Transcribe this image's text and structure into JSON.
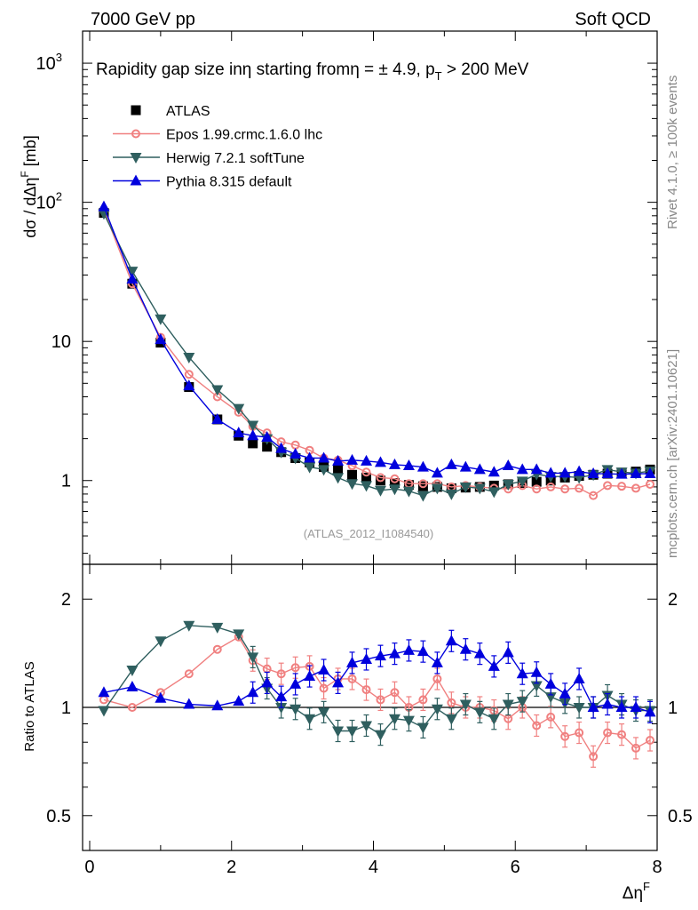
{
  "header": {
    "left": "7000 GeV pp",
    "right": "Soft QCD"
  },
  "side_labels": {
    "top": "Rivet 4.1.0, ≥ 100k events",
    "bottom": "mcplots.cern.ch [arXiv:2401.10621]"
  },
  "colors": {
    "atlas": "#000000",
    "epos": "#f08080",
    "herwig": "#2f5f5f",
    "pythia": "#0000dd"
  },
  "chart_data": [
    {
      "type": "line",
      "title": "Rapidity gap size inη starting fromη = ± 4.9, p_T > 200 MeV",
      "title_parts": {
        "main": "Rapidity gap size inη starting fromη = ± 4.9, p",
        "sub": "T",
        "tail": " > 200 MeV"
      },
      "ylabel": "dσ / dΔηF [mb]",
      "ylabel_parts": {
        "main": "dσ / dΔη",
        "sup": "F",
        "tail": " [mb]"
      },
      "yscale": "log",
      "ylim": [
        0.25,
        1700
      ],
      "xlim": [
        -0.1,
        8.0
      ],
      "yticks": [
        "10",
        "10",
        "10",
        "1"
      ],
      "ytick_sups": [
        "3",
        "2",
        "",
        ""
      ],
      "watermark": "(ATLAS_2012_I1084540)",
      "legend": [
        "ATLAS",
        "Epos 1.99.crmc.1.6.0 lhc",
        "Herwig 7.2.1 softTune",
        "Pythia 8.315 default"
      ],
      "x": [
        0.2,
        0.6,
        1.0,
        1.4,
        1.8,
        2.1,
        2.3,
        2.5,
        2.7,
        2.9,
        3.1,
        3.3,
        3.5,
        3.7,
        3.9,
        4.1,
        4.3,
        4.5,
        4.7,
        4.9,
        5.1,
        5.3,
        5.5,
        5.7,
        5.9,
        6.1,
        6.3,
        6.5,
        6.7,
        6.9,
        7.1,
        7.3,
        7.5,
        7.7,
        7.9
      ],
      "series": [
        {
          "name": "ATLAS",
          "values": [
            84,
            26,
            9.8,
            4.7,
            2.75,
            2.1,
            1.85,
            1.75,
            1.6,
            1.45,
            1.35,
            1.25,
            1.2,
            1.1,
            1.05,
            1.0,
            0.96,
            0.93,
            0.91,
            0.9,
            0.88,
            0.89,
            0.9,
            0.92,
            0.94,
            0.96,
            0.98,
            1.0,
            1.05,
            1.08,
            1.1,
            1.12,
            1.14,
            1.16,
            1.2
          ]
        },
        {
          "name": "Epos 1.99.crmc.1.6.0 lhc",
          "values": [
            88,
            26,
            10.7,
            5.8,
            4.0,
            3.1,
            2.45,
            2.2,
            1.9,
            1.8,
            1.65,
            1.45,
            1.4,
            1.28,
            1.15,
            1.05,
            1.03,
            0.95,
            0.95,
            0.95,
            0.9,
            0.92,
            0.9,
            0.88,
            0.87,
            0.92,
            0.87,
            0.9,
            0.87,
            0.88,
            0.78,
            0.92,
            0.91,
            0.88,
            0.94
          ]
        },
        {
          "name": "Herwig 7.2.1 softTune",
          "values": [
            83,
            32,
            14.5,
            7.7,
            4.5,
            3.3,
            2.5,
            2.0,
            1.6,
            1.45,
            1.25,
            1.2,
            1.05,
            0.95,
            0.92,
            0.85,
            0.87,
            0.84,
            0.78,
            0.88,
            0.8,
            0.9,
            0.88,
            0.83,
            0.94,
            0.99,
            1.11,
            1.07,
            1.07,
            1.05,
            1.1,
            1.2,
            1.15,
            1.13,
            1.17
          ]
        },
        {
          "name": "Pythia 8.315 default",
          "values": [
            93,
            28,
            10.3,
            4.8,
            2.75,
            2.2,
            2.1,
            2.05,
            1.7,
            1.55,
            1.45,
            1.45,
            1.38,
            1.4,
            1.38,
            1.35,
            1.3,
            1.28,
            1.25,
            1.13,
            1.3,
            1.25,
            1.2,
            1.15,
            1.28,
            1.2,
            1.2,
            1.13,
            1.13,
            1.16,
            1.12,
            1.12,
            1.11,
            1.12,
            1.12
          ]
        }
      ]
    },
    {
      "type": "line",
      "ylabel": "Ratio to ATLAS",
      "yscale": "log",
      "ylim": [
        0.4,
        2.5
      ],
      "xlabel": "ΔηF",
      "xlabel_parts": {
        "main": "Δη",
        "sup": "F"
      },
      "xticks": [
        "0",
        "2",
        "4",
        "6",
        "8"
      ],
      "yticks": [
        "2",
        "1",
        "0.5"
      ],
      "x": [
        0.2,
        0.6,
        1.0,
        1.4,
        1.8,
        2.1,
        2.3,
        2.5,
        2.7,
        2.9,
        3.1,
        3.3,
        3.5,
        3.7,
        3.9,
        4.1,
        4.3,
        4.5,
        4.7,
        4.9,
        5.1,
        5.3,
        5.5,
        5.7,
        5.9,
        6.1,
        6.3,
        6.5,
        6.7,
        6.9,
        7.1,
        7.3,
        7.5,
        7.7,
        7.9
      ],
      "series": [
        {
          "name": "Epos 1.99.crmc.1.6.0 lhc",
          "values": [
            1.05,
            1.0,
            1.1,
            1.24,
            1.45,
            1.57,
            1.35,
            1.28,
            1.24,
            1.29,
            1.3,
            1.13,
            1.2,
            1.2,
            1.12,
            1.05,
            1.1,
            1.0,
            1.05,
            1.2,
            1.03,
            1.0,
            1.0,
            0.98,
            0.93,
            1.0,
            0.89,
            0.94,
            0.83,
            0.85,
            0.73,
            0.85,
            0.84,
            0.77,
            0.81
          ]
        },
        {
          "name": "Herwig 7.2.1 softTune",
          "values": [
            0.98,
            1.27,
            1.53,
            1.69,
            1.67,
            1.6,
            1.38,
            1.13,
            1.0,
            0.99,
            0.93,
            0.97,
            0.86,
            0.86,
            0.89,
            0.84,
            0.93,
            0.92,
            0.88,
            0.99,
            0.93,
            1.02,
            0.97,
            0.93,
            1.02,
            1.04,
            1.15,
            1.07,
            1.03,
            1.0,
            1.0,
            1.08,
            1.02,
            0.98,
            0.98
          ]
        },
        {
          "name": "Pythia 8.315 default",
          "values": [
            1.1,
            1.14,
            1.06,
            1.02,
            1.01,
            1.04,
            1.1,
            1.17,
            1.07,
            1.16,
            1.22,
            1.27,
            1.17,
            1.33,
            1.36,
            1.39,
            1.41,
            1.44,
            1.43,
            1.33,
            1.53,
            1.45,
            1.41,
            1.3,
            1.42,
            1.24,
            1.25,
            1.16,
            1.09,
            1.2,
            1.0,
            1.02,
            1.0,
            1.0,
            0.97
          ]
        }
      ]
    }
  ]
}
